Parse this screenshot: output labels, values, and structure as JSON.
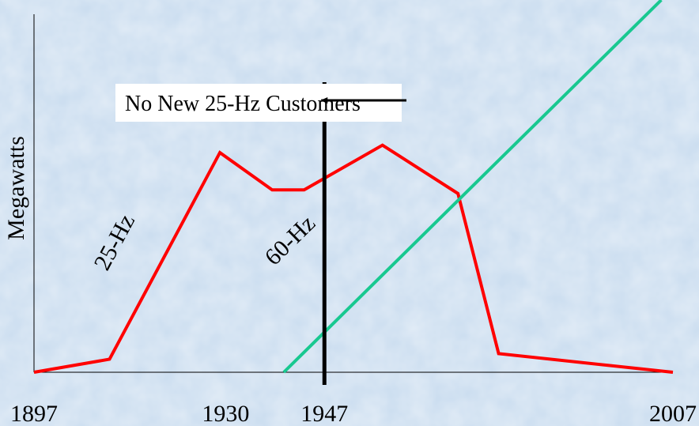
{
  "chart_data": {
    "type": "line",
    "title": "",
    "xlabel": "",
    "ylabel": "Megawatts",
    "xlim": [
      1897,
      2007
    ],
    "ylim": [
      0,
      100
    ],
    "x_ticks": [
      1897,
      1930,
      1947,
      2007
    ],
    "grid": false,
    "legend": "none",
    "background_color": "#c9dcef",
    "axis_color": "#000000",
    "series": [
      {
        "name": "25-Hz",
        "color": "#ff0000",
        "points": [
          [
            1897,
            0
          ],
          [
            1910,
            3.5
          ],
          [
            1929,
            59
          ],
          [
            1938,
            49
          ],
          [
            1943.5,
            49
          ],
          [
            1957,
            61
          ],
          [
            1970,
            48
          ],
          [
            1977,
            5
          ],
          [
            2007,
            0
          ]
        ]
      },
      {
        "name": "60-Hz",
        "color": "#18c890",
        "points": [
          [
            1940,
            0
          ],
          [
            2005,
            100
          ]
        ]
      }
    ],
    "annotations": [
      {
        "type": "vline",
        "x": 1947,
        "color": "#000000"
      },
      {
        "type": "callout",
        "text": "No New 25-Hz Customers",
        "target_x": 1947
      }
    ]
  }
}
